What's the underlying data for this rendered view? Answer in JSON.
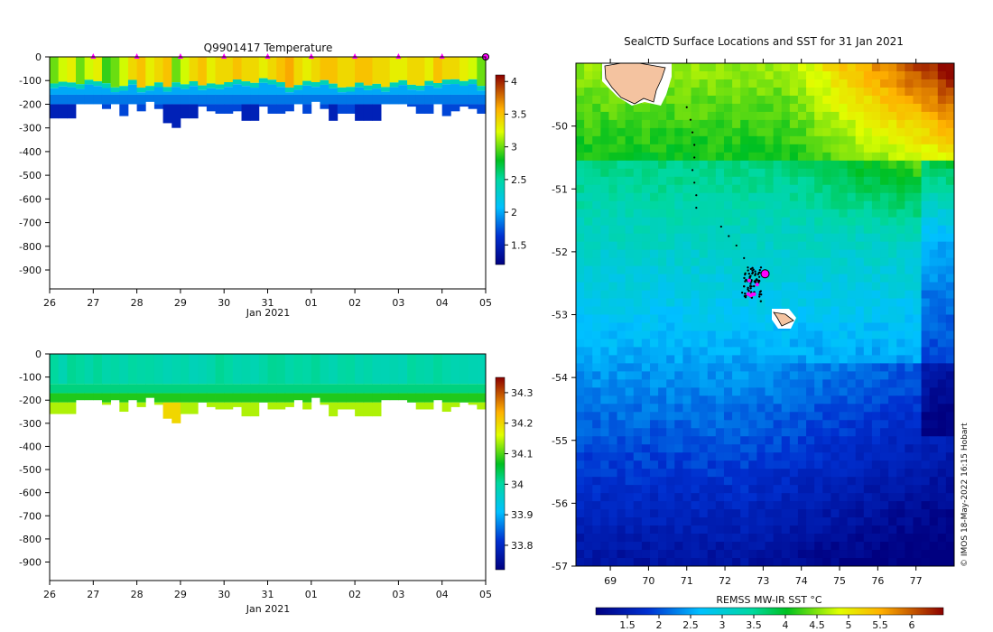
{
  "colors": {
    "land": "#f4c3a0",
    "marker": "#ff00ff",
    "track": "#000000"
  },
  "chart_data": [
    {
      "id": "temperature-section",
      "type": "heatmap",
      "title": "Q9901417  Temperature",
      "xlabel": "Jan 2021",
      "ylabel": "",
      "x_ticks": [
        "26",
        "27",
        "28",
        "29",
        "30",
        "31",
        "01",
        "02",
        "03",
        "04",
        "05"
      ],
      "x_range_days": [
        0,
        10
      ],
      "ylim": [
        -980,
        0
      ],
      "y_ticks": [
        0,
        -100,
        -200,
        -300,
        -400,
        -500,
        -600,
        -700,
        -800,
        -900
      ],
      "colorbar": {
        "ticks": [
          "4",
          "3.5",
          "3",
          "2.5",
          "2",
          "1.5"
        ],
        "min": 1.2,
        "max": 4.1
      },
      "profile_markers_day": [
        1,
        2,
        3,
        4,
        5,
        6,
        7,
        8,
        9,
        10
      ],
      "profile_depths_m": [
        260,
        260,
        260,
        200,
        200,
        200,
        220,
        200,
        250,
        200,
        230,
        190,
        220,
        280,
        300,
        260,
        260,
        210,
        230,
        240,
        240,
        230,
        270,
        270,
        210,
        240,
        240,
        230,
        200,
        240,
        190,
        220,
        270,
        240,
        240,
        270,
        270,
        270,
        200,
        200,
        200,
        210,
        240,
        240,
        200,
        250,
        230,
        210,
        220,
        240
      ],
      "surface_temp_c": [
        3.0,
        3.2,
        3.3,
        3.0,
        3.2,
        3.3,
        2.9,
        3.0,
        3.2,
        3.4,
        3.5,
        3.3,
        3.4,
        3.5,
        3.0,
        3.2,
        3.4,
        3.5,
        3.3,
        3.4,
        3.4,
        3.5,
        3.4,
        3.4,
        3.3,
        3.4,
        3.5,
        3.6,
        3.4,
        3.3,
        3.4,
        3.5,
        3.5,
        3.4,
        3.4,
        3.5,
        3.5,
        3.4,
        3.4,
        3.3,
        3.3,
        3.4,
        3.4,
        3.3,
        3.5,
        3.4,
        3.4,
        3.3,
        3.2,
        3.0
      ]
    },
    {
      "id": "salinity-section",
      "type": "heatmap",
      "title": "",
      "xlabel": "Jan 2021",
      "ylabel": "",
      "x_ticks": [
        "26",
        "27",
        "28",
        "29",
        "30",
        "31",
        "01",
        "02",
        "03",
        "04",
        "05"
      ],
      "x_range_days": [
        0,
        10
      ],
      "ylim": [
        -980,
        0
      ],
      "y_ticks": [
        0,
        -100,
        -200,
        -300,
        -400,
        -500,
        -600,
        -700,
        -800,
        -900
      ],
      "colorbar": {
        "ticks": [
          "34.3",
          "34.2",
          "34.1",
          "34",
          "33.9",
          "33.8"
        ],
        "min": 33.72,
        "max": 34.35
      }
    },
    {
      "id": "sst-map",
      "type": "heatmap",
      "title": "SealCTD Surface Locations and SST for 31 Jan 2021",
      "xlabel": "",
      "ylabel": "",
      "lon_range": [
        68.1,
        78.0
      ],
      "lat_range": [
        -57.0,
        -49.0
      ],
      "lon_ticks": [
        "69",
        "70",
        "71",
        "72",
        "73",
        "74",
        "75",
        "76",
        "77"
      ],
      "lat_ticks": [
        "-50",
        "-51",
        "-52",
        "-53",
        "-54",
        "-55",
        "-56",
        "-57"
      ],
      "current_position": {
        "lon": 73.05,
        "lat": -52.35
      },
      "track_points": [
        [
          71.0,
          -49.7
        ],
        [
          71.1,
          -49.9
        ],
        [
          71.15,
          -50.1
        ],
        [
          71.2,
          -50.3
        ],
        [
          71.2,
          -50.5
        ],
        [
          71.15,
          -50.7
        ],
        [
          71.2,
          -50.9
        ],
        [
          71.25,
          -51.1
        ],
        [
          71.25,
          -51.3
        ],
        [
          71.9,
          -51.6
        ],
        [
          72.1,
          -51.75
        ],
        [
          72.3,
          -51.9
        ],
        [
          72.5,
          -52.1
        ],
        [
          72.6,
          -52.25
        ],
        [
          72.65,
          -52.4
        ],
        [
          72.5,
          -52.55
        ],
        [
          72.55,
          -52.7
        ],
        [
          72.7,
          -52.55
        ],
        [
          72.8,
          -52.35
        ],
        [
          72.9,
          -52.4
        ],
        [
          72.6,
          -52.6
        ],
        [
          72.45,
          -52.65
        ],
        [
          72.7,
          -52.45
        ]
      ],
      "colorbar": {
        "label": "REMSS MW-IR SST °C",
        "ticks": [
          "1.5",
          "2",
          "2.5",
          "3",
          "3.5",
          "4",
          "4.5",
          "5",
          "5.5",
          "6"
        ],
        "min": 1.0,
        "max": 6.5
      },
      "credit": "© IMOS 18-May-2022 16:15 Hobart"
    }
  ]
}
